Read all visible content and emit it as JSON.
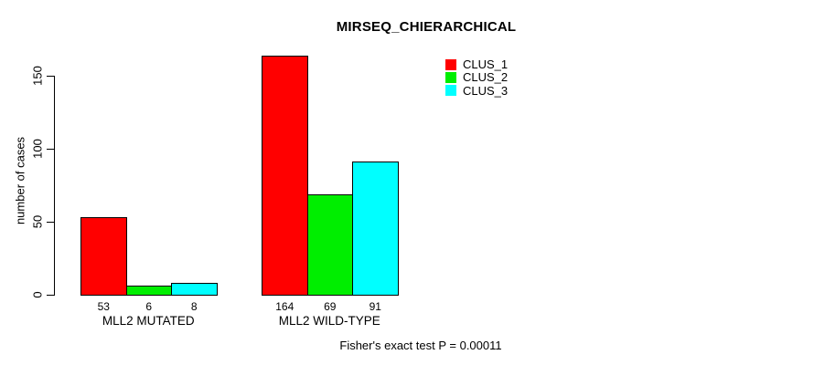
{
  "title": "MIRSEQ_CHIERARCHICAL",
  "annotation": "Fisher's exact test P = 0.00011",
  "chart_data": {
    "type": "bar",
    "title": "MIRSEQ_CHIERARCHICAL",
    "xlabel": "",
    "ylabel": "number of cases",
    "categories": [
      "MLL2 MUTATED",
      "MLL2 WILD-TYPE"
    ],
    "series": [
      {
        "name": "CLUS_1",
        "color": "#ff0000",
        "values": [
          53,
          164
        ]
      },
      {
        "name": "CLUS_2",
        "color": "#00ee00",
        "values": [
          6,
          69
        ]
      },
      {
        "name": "CLUS_3",
        "color": "#00ffff",
        "values": [
          8,
          91
        ]
      }
    ],
    "bar_value_labels": true,
    "yticks": [
      0,
      50,
      100,
      150
    ],
    "ylim": [
      0,
      164
    ],
    "grid": false,
    "legend_position": "top-right-inside",
    "axis_color": "#000000",
    "bar_border_color": "#000000",
    "background_color": "#ffffff"
  }
}
